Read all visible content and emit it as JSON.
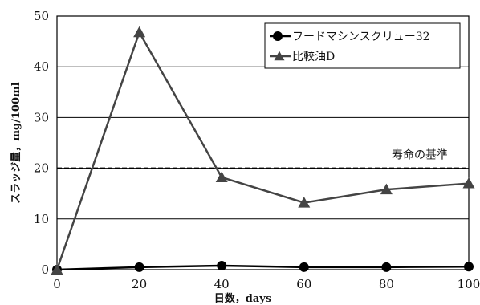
{
  "chart_data": {
    "type": "line",
    "xlabel": "日数，days",
    "ylabel": "スラッジ量，mg/100ml",
    "xlim": [
      0,
      100
    ],
    "ylim": [
      0,
      50
    ],
    "x_ticks": [
      0,
      20,
      40,
      60,
      80,
      100
    ],
    "y_ticks": [
      0,
      10,
      20,
      30,
      40,
      50
    ],
    "grid": "horizontal",
    "legend_position": "top-right",
    "series": [
      {
        "name": "フードマシンスクリュー32",
        "marker": "circle",
        "color": "#000000",
        "x": [
          0,
          20,
          40,
          60,
          80,
          100
        ],
        "y": [
          0,
          0.5,
          0.8,
          0.5,
          0.5,
          0.6
        ]
      },
      {
        "name": "比較油D",
        "marker": "triangle",
        "color": "#444444",
        "x": [
          0,
          20,
          40,
          60,
          80,
          100
        ],
        "y": [
          0,
          46.8,
          18.2,
          13.2,
          15.8,
          17.0
        ]
      }
    ],
    "reference_line": {
      "label": "寿命の基準",
      "y": 20
    }
  }
}
